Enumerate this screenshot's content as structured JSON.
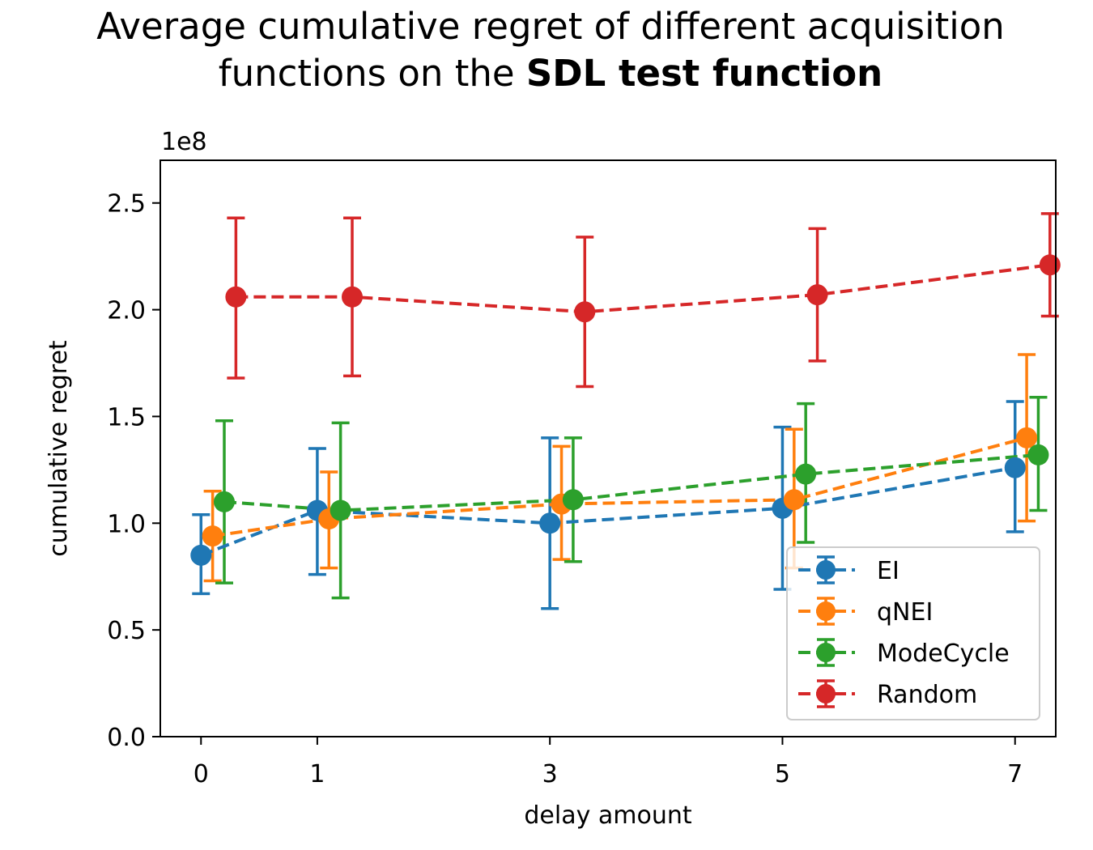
{
  "chart_data": {
    "type": "line",
    "title_line1": "Average cumulative regret of different acquisition",
    "title_line2_prefix": "functions on the ",
    "title_line2_bold": "SDL test function",
    "xlabel": "delay amount",
    "ylabel": "cumulative regret",
    "y_scale_label": "1e8",
    "x_ticks": [
      0,
      1,
      3,
      5,
      7
    ],
    "x_tick_labels": [
      "0",
      "1",
      "3",
      "5",
      "7"
    ],
    "y_ticks": [
      0.0,
      0.5,
      1.0,
      1.5,
      2.0,
      2.5
    ],
    "y_tick_labels": [
      "0.0",
      "0.5",
      "1.0",
      "1.5",
      "2.0",
      "2.5"
    ],
    "xlim": [
      -0.35,
      7.35
    ],
    "ylim": [
      0,
      2.7
    ],
    "linestyle": "dashed",
    "legend_position": "lower-right",
    "series": [
      {
        "name": "EI",
        "color": "#1f77b4",
        "x": [
          0,
          1,
          3,
          5,
          7
        ],
        "y": [
          0.85,
          1.06,
          1.0,
          1.07,
          1.26
        ],
        "err_low": [
          0.67,
          0.76,
          0.6,
          0.69,
          0.96
        ],
        "err_high": [
          1.04,
          1.35,
          1.4,
          1.45,
          1.57
        ]
      },
      {
        "name": "qNEI",
        "color": "#ff7f0e",
        "x": [
          0.1,
          1.1,
          3.1,
          5.1,
          7.1
        ],
        "y": [
          0.94,
          1.02,
          1.09,
          1.11,
          1.4
        ],
        "err_low": [
          0.73,
          0.79,
          0.83,
          0.79,
          1.01
        ],
        "err_high": [
          1.15,
          1.24,
          1.36,
          1.44,
          1.79
        ]
      },
      {
        "name": "ModeCycle",
        "color": "#2ca02c",
        "x": [
          0.2,
          1.2,
          3.2,
          5.2,
          7.2
        ],
        "y": [
          1.1,
          1.06,
          1.11,
          1.23,
          1.32
        ],
        "err_low": [
          0.72,
          0.65,
          0.82,
          0.91,
          1.06
        ],
        "err_high": [
          1.48,
          1.47,
          1.4,
          1.56,
          1.59
        ]
      },
      {
        "name": "Random",
        "color": "#d62728",
        "x": [
          0.3,
          1.3,
          3.3,
          5.3,
          7.3
        ],
        "y": [
          2.06,
          2.06,
          1.99,
          2.07,
          2.21
        ],
        "err_low": [
          1.68,
          1.69,
          1.64,
          1.76,
          1.97
        ],
        "err_high": [
          2.43,
          2.43,
          2.34,
          2.38,
          2.45
        ]
      }
    ]
  }
}
